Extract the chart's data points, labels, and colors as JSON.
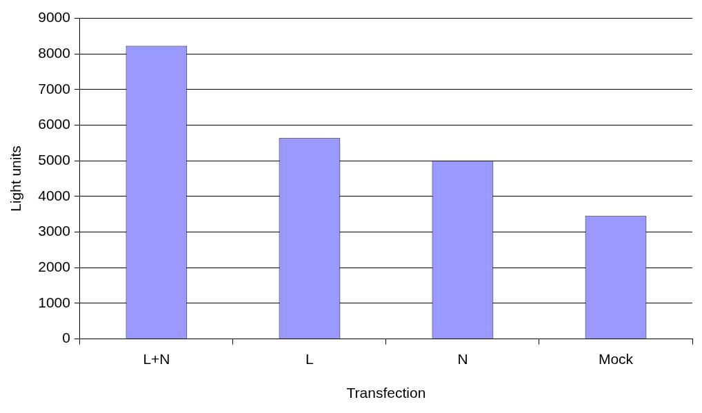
{
  "chart_data": {
    "type": "bar",
    "xlabel": "Transfection",
    "ylabel": "Light units",
    "categories": [
      "L+N",
      "L",
      "N",
      "Mock"
    ],
    "values": [
      8230,
      5640,
      5000,
      3450
    ],
    "color": "#9999ff",
    "ylim": [
      0,
      9000
    ],
    "yticks": [
      0,
      1000,
      2000,
      3000,
      4000,
      5000,
      6000,
      7000,
      8000,
      9000
    ],
    "grid": "y"
  }
}
